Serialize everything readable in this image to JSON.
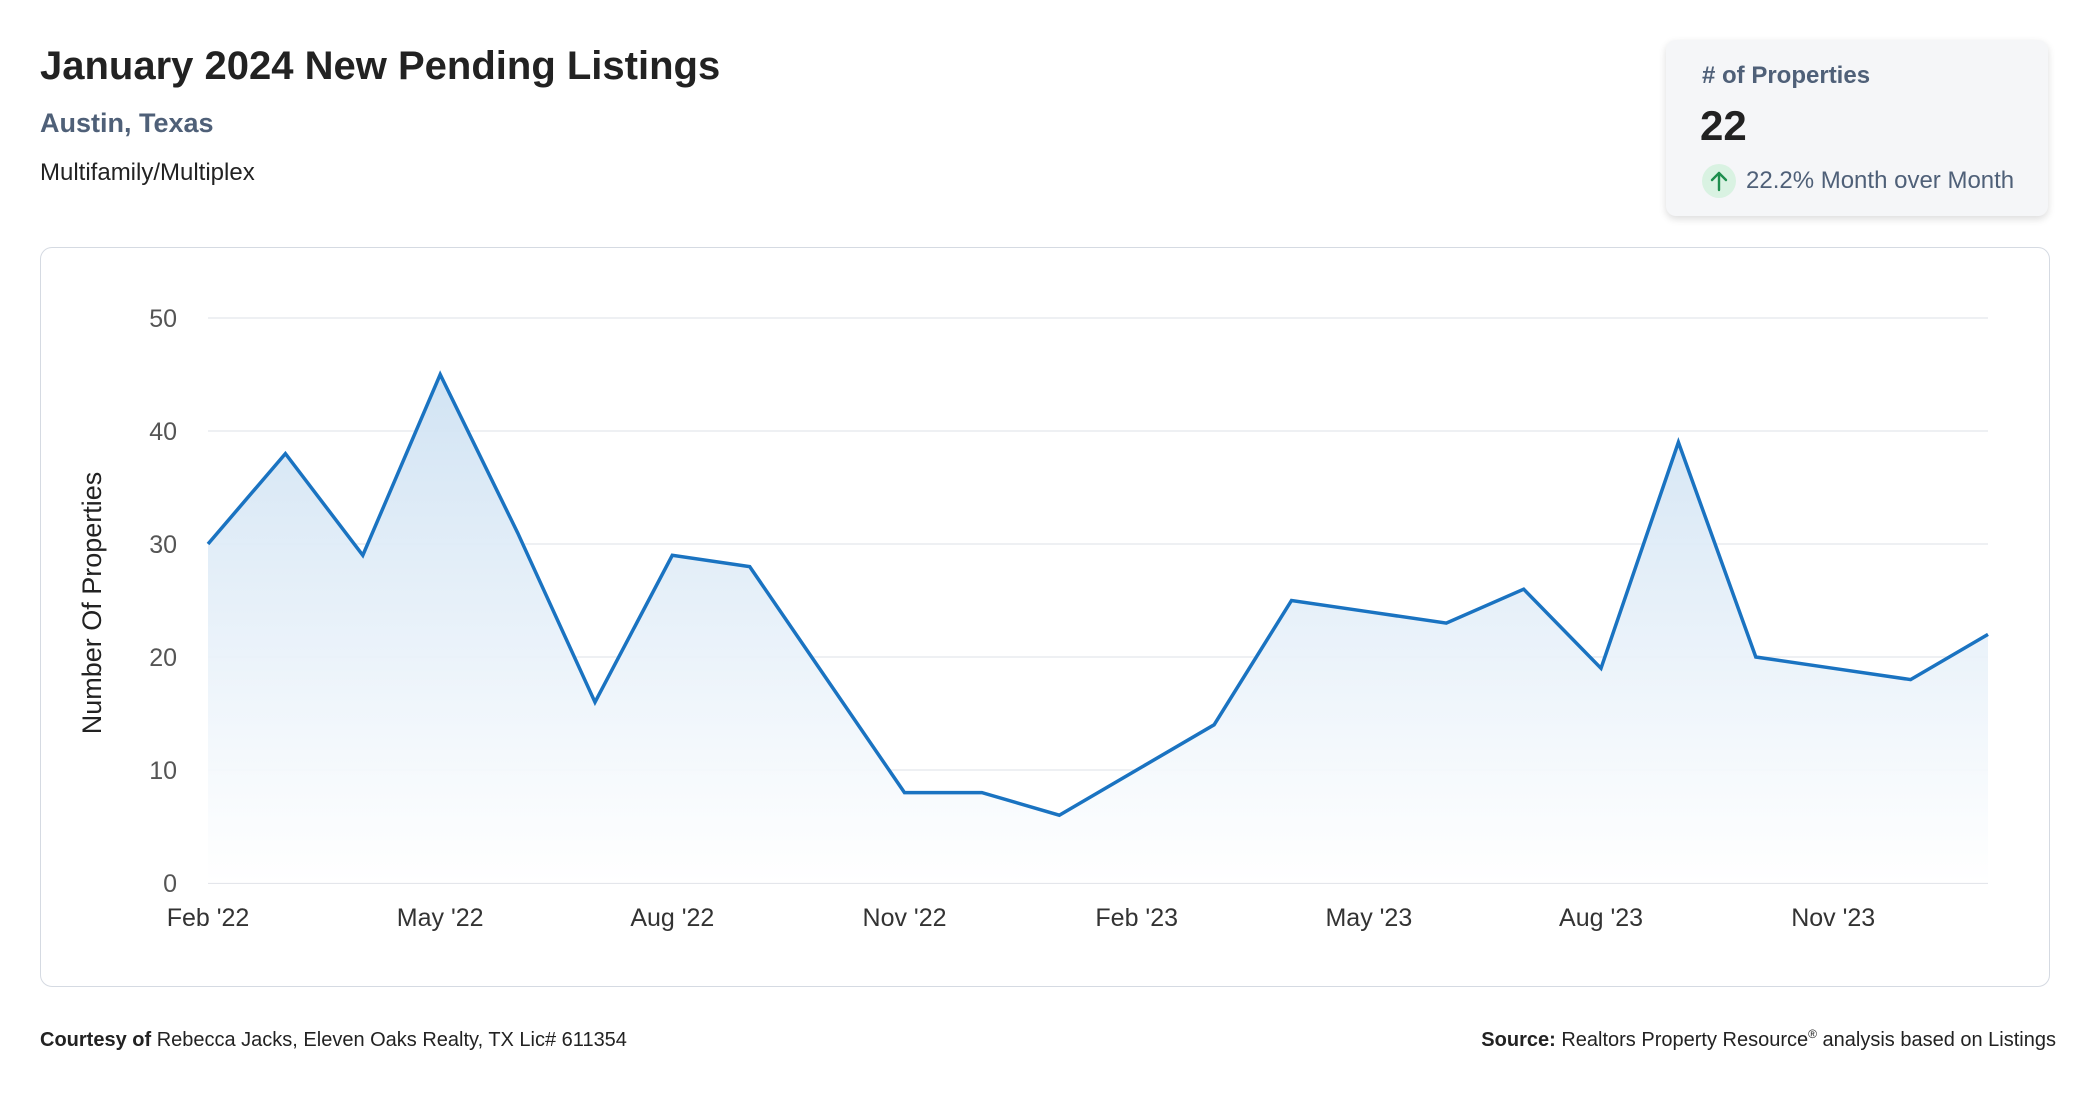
{
  "header": {
    "title": "January 2024 New Pending Listings",
    "location": "Austin, Texas",
    "property_type": "Multifamily/Multiplex"
  },
  "stat_card": {
    "label": "# of Properties",
    "value": "22",
    "change": "22.2% Month over Month",
    "direction": "up",
    "icon": "arrow-up-icon"
  },
  "footer": {
    "courtesy_label": "Courtesy of",
    "courtesy_text": "Rebecca Jacks, Eleven Oaks Realty, TX Lic# 611354",
    "source_label": "Source:",
    "source_text_a": "Realtors Property Resource",
    "source_mark": "®",
    "source_text_b": " analysis based on Listings"
  },
  "colors": {
    "line": "#1a73c1",
    "area_top": "#cfe2f3",
    "area_bottom": "#ffffff",
    "grid": "#e4e7ec",
    "accent_text": "#4f6078",
    "up_badge_bg": "#d9f2e2",
    "up_arrow": "#1e8e4e"
  },
  "chart_data": {
    "type": "area",
    "title": "",
    "xlabel": "",
    "ylabel": "Number Of Properties",
    "ylim": [
      0,
      50
    ],
    "yticks": [
      0,
      10,
      20,
      30,
      40,
      50
    ],
    "grid": true,
    "x": [
      "Feb '22",
      "Mar '22",
      "Apr '22",
      "May '22",
      "Jun '22",
      "Jul '22",
      "Aug '22",
      "Sep '22",
      "Oct '22",
      "Nov '22",
      "Dec '22",
      "Jan '23",
      "Feb '23",
      "Mar '23",
      "Apr '23",
      "May '23",
      "Jun '23",
      "Jul '23",
      "Aug '23",
      "Sep '23",
      "Oct '23",
      "Nov '23",
      "Dec '23",
      "Jan '24"
    ],
    "xtick_labels": [
      "Feb '22",
      "May '22",
      "Aug '22",
      "Nov '22",
      "Feb '23",
      "May '23",
      "Aug '23",
      "Nov '23"
    ],
    "series": [
      {
        "values": [
          30,
          38,
          29,
          45,
          31,
          16,
          29,
          28,
          18,
          8,
          8,
          6,
          10,
          14,
          25,
          24,
          23,
          26,
          19,
          39,
          20,
          19,
          18,
          22
        ]
      }
    ]
  }
}
